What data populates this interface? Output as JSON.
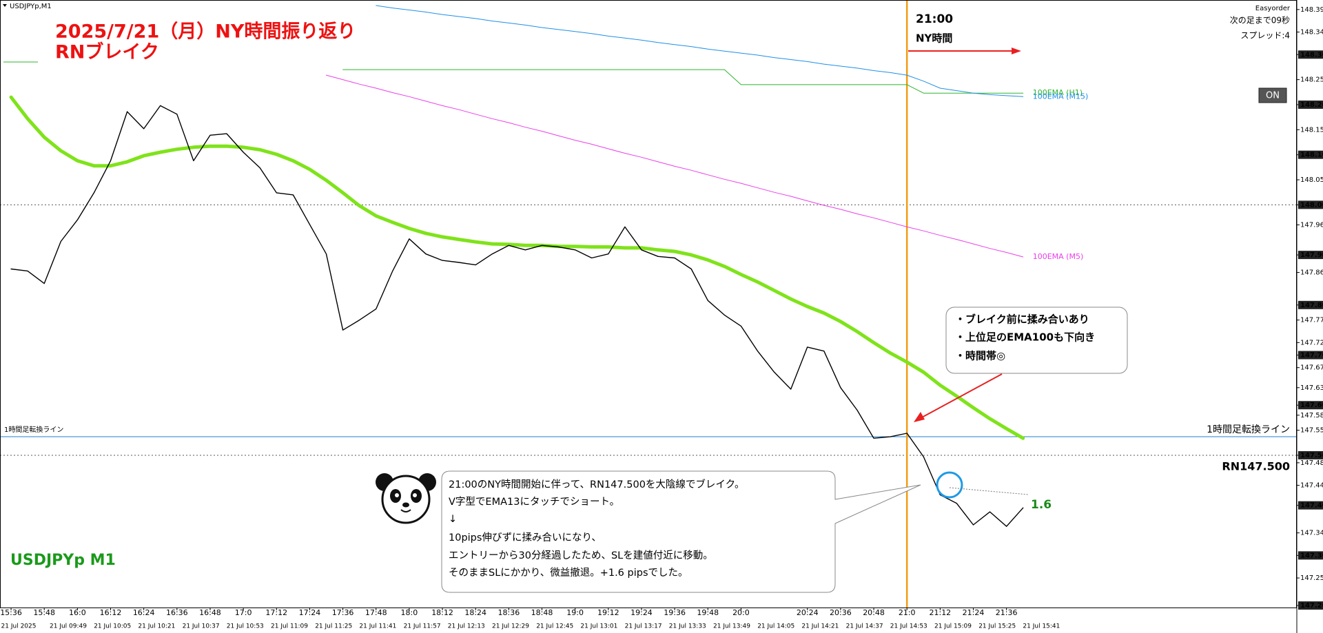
{
  "header": {
    "symbol": "USDJPYp,M1",
    "easyorder": "Easyorder",
    "countdown": "次の足まで09秒",
    "spread": "スプレッド:4",
    "button": "ON"
  },
  "annotations": {
    "title": "2025/7/21（月）NY時間振り返り",
    "subtitle": "RNブレイク",
    "symbol_label": "USDJPYp M1",
    "session_label": "NY時間",
    "callout": [
      "・ブレイク前に揉み合いあり",
      "・上位足のEMA100も下向き",
      "・時間帯◎"
    ],
    "note": [
      "21:00のNY時間開始に伴って、RN147.500を大陰線でブレイク。",
      "V字型でEMA13にタッチでショート。",
      "↓",
      "10pips伸びずに揉み合いになり、",
      "エントリーから30分経過したため、SLを建値付近に移動。",
      "そのままSLにかかり、微益撤退。+1.6 pipsでした。"
    ],
    "pips": "1.6"
  },
  "chart_data": {
    "type": "line",
    "xlim": [
      "15:32",
      "23:21"
    ],
    "ylim": [
      147.196,
      148.409
    ],
    "x": [
      "15:36",
      "15:42",
      "15:48",
      "15:54",
      "16:00",
      "16:06",
      "16:12",
      "16:18",
      "16:24",
      "16:30",
      "16:36",
      "16:42",
      "16:48",
      "16:54",
      "17:00",
      "17:06",
      "17:12",
      "17:18",
      "17:24",
      "17:30",
      "17:36",
      "17:42",
      "17:48",
      "17:54",
      "18:00",
      "18:06",
      "18:12",
      "18:18",
      "18:24",
      "18:30",
      "18:36",
      "18:42",
      "18:48",
      "18:54",
      "19:00",
      "19:06",
      "19:12",
      "19:18",
      "19:24",
      "19:30",
      "19:36",
      "19:42",
      "19:48",
      "19:54",
      "20:00",
      "20:06",
      "20:12",
      "20:18",
      "20:24",
      "20:30",
      "20:36",
      "20:42",
      "20:48",
      "20:54",
      "21:00",
      "21:06",
      "21:12",
      "21:18",
      "21:24",
      "21:30",
      "21:36",
      "21:42"
    ],
    "series": [
      {
        "color": "#000000",
        "width": 1.4,
        "values": [
          147.872,
          147.868,
          147.843,
          147.927,
          147.97,
          148.024,
          148.088,
          148.186,
          148.152,
          148.198,
          148.181,
          148.088,
          148.139,
          148.142,
          148.105,
          148.074,
          148.024,
          148.02,
          147.961,
          147.902,
          147.75,
          147.77,
          147.792,
          147.868,
          147.932,
          147.902,
          147.889,
          147.885,
          147.88,
          147.902,
          147.919,
          147.91,
          147.919,
          147.916,
          147.91,
          147.894,
          147.902,
          147.956,
          147.91,
          147.897,
          147.894,
          147.872,
          147.809,
          147.78,
          147.758,
          147.708,
          147.666,
          147.632,
          147.716,
          147.708,
          147.635,
          147.59,
          147.534,
          147.537,
          147.544,
          147.497,
          147.421,
          147.404,
          147.361,
          147.387,
          147.358,
          147.395
        ]
      },
      {
        "color": "#7fe31a",
        "width": 5,
        "values": [
          148.215,
          148.172,
          148.135,
          148.108,
          148.088,
          148.078,
          148.078,
          148.086,
          148.098,
          148.105,
          148.111,
          148.115,
          148.117,
          148.117,
          148.115,
          148.11,
          148.101,
          148.088,
          148.071,
          148.049,
          148.024,
          147.998,
          147.978,
          147.965,
          147.953,
          147.943,
          147.936,
          147.931,
          147.926,
          147.922,
          147.921,
          147.919,
          147.919,
          147.917,
          147.917,
          147.916,
          147.916,
          147.914,
          147.914,
          147.91,
          147.907,
          147.9,
          147.89,
          147.877,
          147.861,
          147.846,
          147.829,
          147.812,
          147.797,
          147.784,
          147.767,
          147.747,
          147.725,
          147.704,
          147.686,
          147.666,
          147.64,
          147.618,
          147.595,
          147.573,
          147.553,
          147.534
        ]
      },
      {
        "name": "100EMA (H1)",
        "color": "#2bb52b",
        "width": 1,
        "values": [
          null,
          null,
          null,
          null,
          null,
          null,
          null,
          null,
          null,
          null,
          null,
          null,
          null,
          null,
          null,
          null,
          null,
          null,
          null,
          null,
          148.27,
          148.27,
          148.27,
          148.27,
          148.27,
          148.27,
          148.27,
          148.27,
          148.27,
          148.27,
          148.27,
          148.27,
          148.27,
          148.27,
          148.27,
          148.27,
          148.27,
          148.27,
          148.27,
          148.27,
          148.27,
          148.27,
          148.27,
          148.27,
          148.24,
          148.24,
          148.24,
          148.24,
          148.24,
          148.24,
          148.24,
          148.24,
          148.24,
          148.24,
          148.24,
          148.223,
          148.223,
          148.223,
          148.223,
          148.223,
          148.223,
          148.223
        ]
      },
      {
        "name": "100EMA (M15)",
        "color": "#1e8fe6",
        "width": 1,
        "values": [
          null,
          null,
          null,
          null,
          null,
          null,
          null,
          null,
          null,
          null,
          null,
          null,
          null,
          null,
          null,
          null,
          null,
          null,
          null,
          null,
          null,
          null,
          148.398,
          148.393,
          148.389,
          148.385,
          148.38,
          148.376,
          148.372,
          148.367,
          148.363,
          148.359,
          148.354,
          148.35,
          148.346,
          148.342,
          148.337,
          148.333,
          148.329,
          148.324,
          148.32,
          148.316,
          148.311,
          148.307,
          148.303,
          148.299,
          148.294,
          148.29,
          148.286,
          148.281,
          148.277,
          148.273,
          148.268,
          148.264,
          148.259,
          148.247,
          148.233,
          148.228,
          148.223,
          148.22,
          148.218,
          148.216
        ]
      },
      {
        "name": "100EMA (M5)",
        "color": "#e93fe9",
        "width": 1,
        "values": [
          null,
          null,
          null,
          null,
          null,
          null,
          null,
          null,
          null,
          null,
          null,
          null,
          null,
          null,
          null,
          null,
          null,
          null,
          null,
          148.259,
          148.25,
          148.241,
          148.233,
          148.224,
          148.216,
          148.207,
          148.198,
          148.19,
          148.181,
          148.172,
          148.164,
          148.155,
          148.147,
          148.138,
          148.129,
          148.121,
          148.112,
          148.103,
          148.095,
          148.086,
          148.077,
          148.069,
          148.06,
          148.051,
          148.043,
          148.034,
          148.025,
          148.017,
          148.008,
          147.999,
          147.991,
          147.982,
          147.974,
          147.965,
          147.956,
          147.948,
          147.939,
          147.931,
          147.922,
          147.913,
          147.905,
          147.896
        ]
      }
    ],
    "hlines": [
      {
        "value": 148.0,
        "style": "dotted",
        "color": "#555555"
      },
      {
        "value": 147.5,
        "style": "dotted",
        "color": "#555555",
        "label": "RN147.500"
      },
      {
        "value": 147.537,
        "style": "solid",
        "color": "#1e7fd0",
        "label": "1時間足転換ライン"
      }
    ],
    "vline": {
      "x": "21:00",
      "color": "#f39c12"
    },
    "yticks": [
      {
        "value": 148.39,
        "label": "148.390"
      },
      {
        "value": 148.345,
        "label": "148.345"
      },
      {
        "value": 148.3,
        "label": "148.300"
      },
      {
        "value": 148.25,
        "label": "148.250"
      },
      {
        "value": 148.2,
        "label": "148.200"
      },
      {
        "value": 148.15,
        "label": "148.150"
      },
      {
        "value": 148.1,
        "label": "148.100"
      },
      {
        "value": 148.05,
        "label": "148.050"
      },
      {
        "value": 148.0,
        "label": "148.000"
      },
      {
        "value": 147.96,
        "label": "147.960"
      },
      {
        "value": 147.9,
        "label": "147.900"
      },
      {
        "value": 147.865,
        "label": "147.865"
      },
      {
        "value": 147.8,
        "label": "147.800"
      },
      {
        "value": 147.77,
        "label": "147.770"
      },
      {
        "value": 147.725,
        "label": "147.725"
      },
      {
        "value": 147.7,
        "label": "147.700"
      },
      {
        "value": 147.675,
        "label": "147.675"
      },
      {
        "value": 147.635,
        "label": "147.635"
      },
      {
        "value": 147.6,
        "label": "147.600"
      },
      {
        "value": 147.58,
        "label": "147.580"
      },
      {
        "value": 147.55,
        "label": "147.550"
      },
      {
        "value": 147.5,
        "label": "147.500"
      },
      {
        "value": 147.485,
        "label": "147.485"
      },
      {
        "value": 147.44,
        "label": "147.440"
      },
      {
        "value": 147.4,
        "label": "147.400"
      },
      {
        "value": 147.345,
        "label": "147.345"
      },
      {
        "value": 147.3,
        "label": "147.300"
      },
      {
        "value": 147.255,
        "label": "147.255"
      },
      {
        "value": 147.2,
        "label": "147.200"
      }
    ],
    "xticks": [
      "15:36",
      "15:48",
      "16:0",
      "16:12",
      "16:24",
      "16:36",
      "16:48",
      "17:0",
      "17:12",
      "17:24",
      "17:36",
      "17:48",
      "18:0",
      "18:12",
      "18:24",
      "18:36",
      "18:48",
      "19:0",
      "19:12",
      "19:24",
      "19:36",
      "19:48",
      "20:0",
      "20:24",
      "20:36",
      "20:48",
      "21:0",
      "21:12",
      "21:24",
      "21:36"
    ],
    "x2_labels": [
      "21 Jul 2025",
      "21 Jul 09:49",
      "21 Jul 10:05",
      "21 Jul 10:21",
      "21 Jul 10:37",
      "21 Jul 10:53",
      "21 Jul 11:09",
      "21 Jul 11:25",
      "21 Jul 11:41",
      "21 Jul 11:57",
      "21 Jul 12:13",
      "21 Jul 12:29",
      "21 Jul 12:45",
      "21 Jul 13:01",
      "21 Jul 13:17",
      "21 Jul 13:33",
      "21 Jul 13:49",
      "21 Jul 14:05",
      "21 Jul 14:21",
      "21 Jul 14:37",
      "21 Jul 14:53",
      "21 Jul 15:09",
      "21 Jul 15:25",
      "21 Jul 15:41"
    ]
  }
}
